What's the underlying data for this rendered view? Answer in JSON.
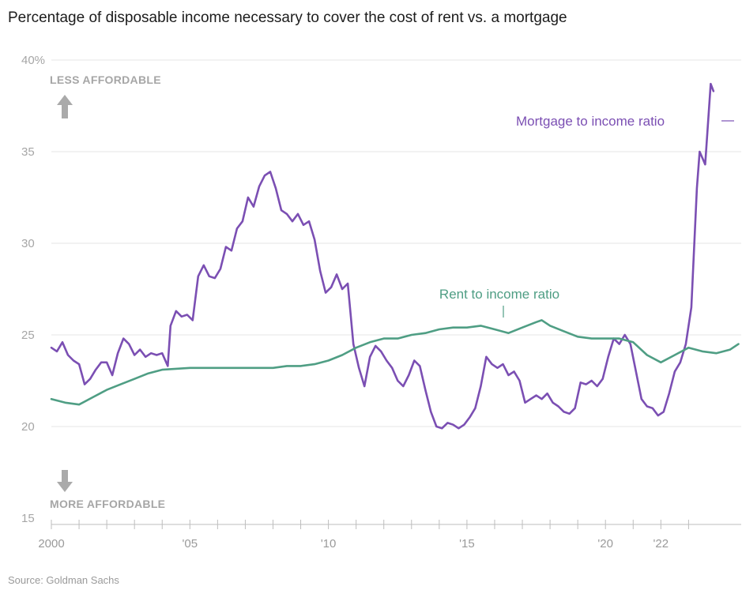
{
  "title": "Percentage of disposable income necessary to cover the cost of rent vs. a mortgage",
  "source": "Source: Goldman Sachs",
  "top_annotation": "LESS AFFORDABLE",
  "bottom_annotation": "MORE AFFORDABLE",
  "colors": {
    "mortgage": "#7b4fb3",
    "rent": "#4f9e84",
    "grid": "#e6e6e6",
    "axis": "#bdbdbd",
    "arrow": "#aaaaaa"
  },
  "chart_data": {
    "type": "line",
    "title": "Percentage of disposable income necessary to cover the cost of rent vs. a mortgage",
    "xlabel": "",
    "ylabel": "",
    "xlim": [
      2000,
      2022.8
    ],
    "ylim": [
      15,
      40
    ],
    "grid": true,
    "y_ticks": [
      15,
      20,
      25,
      30,
      35,
      40
    ],
    "y_tick_labels": [
      "15",
      "20",
      "25",
      "30",
      "35",
      "40%"
    ],
    "x_ticks": [
      2000,
      2005,
      2010,
      2015,
      2020,
      2022
    ],
    "x_tick_labels": [
      "2000",
      "'05",
      "'10",
      "'15",
      "'20",
      "'22"
    ],
    "series": [
      {
        "name": "Mortgage to income ratio",
        "color": "#7b4fb3",
        "points": [
          [
            2000.0,
            24.3
          ],
          [
            2000.2,
            24.1
          ],
          [
            2000.4,
            24.6
          ],
          [
            2000.6,
            23.9
          ],
          [
            2000.8,
            23.6
          ],
          [
            2001.0,
            23.4
          ],
          [
            2001.2,
            22.3
          ],
          [
            2001.4,
            22.6
          ],
          [
            2001.6,
            23.1
          ],
          [
            2001.8,
            23.5
          ],
          [
            2002.0,
            23.5
          ],
          [
            2002.2,
            22.8
          ],
          [
            2002.4,
            24.0
          ],
          [
            2002.6,
            24.8
          ],
          [
            2002.8,
            24.5
          ],
          [
            2003.0,
            23.9
          ],
          [
            2003.2,
            24.2
          ],
          [
            2003.4,
            23.8
          ],
          [
            2003.6,
            24.0
          ],
          [
            2003.8,
            23.9
          ],
          [
            2004.0,
            24.0
          ],
          [
            2004.2,
            23.3
          ],
          [
            2004.3,
            25.5
          ],
          [
            2004.5,
            26.3
          ],
          [
            2004.7,
            26.0
          ],
          [
            2004.9,
            26.1
          ],
          [
            2005.1,
            25.8
          ],
          [
            2005.3,
            28.2
          ],
          [
            2005.5,
            28.8
          ],
          [
            2005.7,
            28.2
          ],
          [
            2005.9,
            28.1
          ],
          [
            2006.1,
            28.6
          ],
          [
            2006.3,
            29.8
          ],
          [
            2006.5,
            29.6
          ],
          [
            2006.7,
            30.8
          ],
          [
            2006.9,
            31.2
          ],
          [
            2007.1,
            32.5
          ],
          [
            2007.3,
            32.0
          ],
          [
            2007.5,
            33.1
          ],
          [
            2007.7,
            33.7
          ],
          [
            2007.9,
            33.9
          ],
          [
            2008.1,
            33.0
          ],
          [
            2008.3,
            31.8
          ],
          [
            2008.5,
            31.6
          ],
          [
            2008.7,
            31.2
          ],
          [
            2008.9,
            31.6
          ],
          [
            2009.1,
            31.0
          ],
          [
            2009.3,
            31.2
          ],
          [
            2009.5,
            30.2
          ],
          [
            2009.7,
            28.5
          ],
          [
            2009.9,
            27.3
          ],
          [
            2010.1,
            27.6
          ],
          [
            2010.3,
            28.3
          ],
          [
            2010.5,
            27.5
          ],
          [
            2010.7,
            27.8
          ],
          [
            2010.9,
            24.5
          ],
          [
            2011.1,
            23.2
          ],
          [
            2011.3,
            22.2
          ],
          [
            2011.5,
            23.8
          ],
          [
            2011.7,
            24.4
          ],
          [
            2011.9,
            24.1
          ],
          [
            2012.1,
            23.6
          ],
          [
            2012.3,
            23.2
          ],
          [
            2012.5,
            22.5
          ],
          [
            2012.7,
            22.2
          ],
          [
            2012.9,
            22.8
          ],
          [
            2013.1,
            23.6
          ],
          [
            2013.3,
            23.3
          ],
          [
            2013.5,
            22.0
          ],
          [
            2013.7,
            20.8
          ],
          [
            2013.9,
            20.0
          ],
          [
            2014.1,
            19.9
          ],
          [
            2014.3,
            20.2
          ],
          [
            2014.5,
            20.1
          ],
          [
            2014.7,
            19.9
          ],
          [
            2014.9,
            20.1
          ],
          [
            2015.1,
            20.5
          ],
          [
            2015.3,
            21.0
          ],
          [
            2015.5,
            22.2
          ],
          [
            2015.7,
            23.8
          ],
          [
            2015.9,
            23.4
          ],
          [
            2016.1,
            23.2
          ],
          [
            2016.3,
            23.4
          ],
          [
            2016.5,
            22.8
          ],
          [
            2016.7,
            23.0
          ],
          [
            2016.9,
            22.5
          ],
          [
            2017.1,
            21.3
          ],
          [
            2017.3,
            21.5
          ],
          [
            2017.5,
            21.7
          ],
          [
            2017.7,
            21.5
          ],
          [
            2017.9,
            21.8
          ],
          [
            2018.1,
            21.3
          ],
          [
            2018.3,
            21.1
          ],
          [
            2018.5,
            20.8
          ],
          [
            2018.7,
            20.7
          ],
          [
            2018.9,
            21.0
          ],
          [
            2019.1,
            22.4
          ],
          [
            2019.3,
            22.3
          ],
          [
            2019.5,
            22.5
          ],
          [
            2019.7,
            22.2
          ],
          [
            2019.9,
            22.6
          ],
          [
            2020.1,
            23.8
          ],
          [
            2020.3,
            24.8
          ],
          [
            2020.5,
            24.5
          ],
          [
            2020.7,
            25.0
          ],
          [
            2020.9,
            24.5
          ],
          [
            2021.1,
            23.0
          ],
          [
            2021.3,
            21.5
          ],
          [
            2021.5,
            21.1
          ],
          [
            2021.7,
            21.0
          ],
          [
            2021.9,
            20.6
          ],
          [
            2022.1,
            20.8
          ],
          [
            2022.3,
            21.8
          ],
          [
            2022.5,
            23.0
          ],
          [
            2022.7,
            23.5
          ],
          [
            2022.9,
            24.5
          ],
          [
            2023.1,
            26.5
          ],
          [
            2023.3,
            33.0
          ],
          [
            2023.4,
            35.0
          ],
          [
            2023.6,
            34.3
          ],
          [
            2023.8,
            38.7
          ],
          [
            2023.9,
            38.3
          ]
        ]
      },
      {
        "name": "Rent to income ratio",
        "color": "#4f9e84",
        "points": [
          [
            2000.0,
            21.5
          ],
          [
            2000.5,
            21.3
          ],
          [
            2001.0,
            21.2
          ],
          [
            2001.5,
            21.6
          ],
          [
            2002.0,
            22.0
          ],
          [
            2002.5,
            22.3
          ],
          [
            2003.0,
            22.6
          ],
          [
            2003.5,
            22.9
          ],
          [
            2004.0,
            23.1
          ],
          [
            2005.0,
            23.2
          ],
          [
            2006.0,
            23.2
          ],
          [
            2007.0,
            23.2
          ],
          [
            2008.0,
            23.2
          ],
          [
            2008.5,
            23.3
          ],
          [
            2009.0,
            23.3
          ],
          [
            2009.5,
            23.4
          ],
          [
            2010.0,
            23.6
          ],
          [
            2010.5,
            23.9
          ],
          [
            2011.0,
            24.3
          ],
          [
            2011.5,
            24.6
          ],
          [
            2012.0,
            24.8
          ],
          [
            2012.5,
            24.8
          ],
          [
            2013.0,
            25.0
          ],
          [
            2013.5,
            25.1
          ],
          [
            2014.0,
            25.3
          ],
          [
            2014.5,
            25.4
          ],
          [
            2015.0,
            25.4
          ],
          [
            2015.5,
            25.5
          ],
          [
            2016.0,
            25.3
          ],
          [
            2016.5,
            25.1
          ],
          [
            2017.0,
            25.4
          ],
          [
            2017.5,
            25.7
          ],
          [
            2017.7,
            25.8
          ],
          [
            2018.0,
            25.5
          ],
          [
            2018.5,
            25.2
          ],
          [
            2019.0,
            24.9
          ],
          [
            2019.5,
            24.8
          ],
          [
            2020.0,
            24.8
          ],
          [
            2020.5,
            24.8
          ],
          [
            2021.0,
            24.6
          ],
          [
            2021.5,
            23.9
          ],
          [
            2022.0,
            23.5
          ],
          [
            2022.5,
            23.9
          ],
          [
            2023.0,
            24.3
          ],
          [
            2023.5,
            24.1
          ],
          [
            2024.0,
            24.0
          ],
          [
            2024.5,
            24.2
          ],
          [
            2024.8,
            24.5
          ]
        ]
      }
    ],
    "annotations": [
      "Mortgage to income ratio",
      "Rent to income ratio",
      "LESS AFFORDABLE",
      "MORE AFFORDABLE"
    ]
  }
}
